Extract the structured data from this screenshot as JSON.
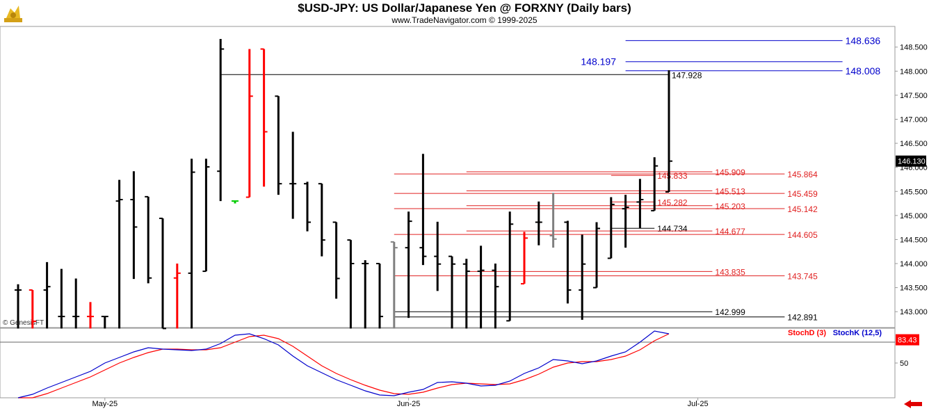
{
  "header": {
    "title": "$USD-JPY:  US Dollar/Japanese Yen @ FORXNY  (Daily bars)",
    "subtitle": "www.TradeNavigator.com © 1999-2025",
    "watermark": "© GenesisFT"
  },
  "colors": {
    "up_bar": "#000000",
    "down_bar": "#ff0000",
    "neutral_bar": "#808080",
    "green_tick": "#00cc00",
    "fib_line": "#e02020",
    "level_line": "#000000",
    "target_line": "#0000cc",
    "price_tag_bg": "#000000",
    "stoch_tag_bg": "#ff0000",
    "stoch_k": "#0000cc",
    "stoch_d": "#ff0000"
  },
  "chart_data": {
    "type": "bar",
    "subtype": "ohlc",
    "y_axis": {
      "ylim": [
        142.67,
        148.93
      ],
      "ticks": [
        "148.500",
        "148.000",
        "147.500",
        "147.000",
        "146.500",
        "146.000",
        "145.500",
        "145.000",
        "144.500",
        "144.000",
        "143.500",
        "143.000"
      ],
      "tick_values": [
        148.5,
        148.0,
        147.5,
        147.0,
        146.5,
        146.0,
        145.5,
        145.0,
        144.5,
        144.0,
        143.5,
        143.0
      ],
      "last_price": "146.130",
      "last_price_value": 146.13
    },
    "x_axis": {
      "labels": [
        "May-25",
        "Jun-25",
        "Jul-25"
      ],
      "label_slots": [
        6,
        27,
        47
      ],
      "slot_count": 56
    },
    "bars": [
      {
        "slot": 0,
        "o": 143.45,
        "h": 143.57,
        "l": 142.65,
        "c": 143.45,
        "color": "up"
      },
      {
        "slot": 1,
        "o": 143.45,
        "h": 143.45,
        "l": 142.65,
        "c": 142.8,
        "color": "down"
      },
      {
        "slot": 2,
        "o": 143.45,
        "h": 144.03,
        "l": 142.65,
        "c": 143.52,
        "color": "up"
      },
      {
        "slot": 3,
        "o": 142.9,
        "h": 143.89,
        "l": 142.65,
        "c": 142.9,
        "color": "up"
      },
      {
        "slot": 4,
        "o": 142.9,
        "h": 143.69,
        "l": 142.65,
        "c": 142.9,
        "color": "up"
      },
      {
        "slot": 5,
        "o": 142.9,
        "h": 143.2,
        "l": 142.65,
        "c": 142.9,
        "color": "down"
      },
      {
        "slot": 6,
        "o": 142.9,
        "h": 142.9,
        "l": 142.65,
        "c": 142.9,
        "color": "up"
      },
      {
        "slot": 7,
        "o": 145.3,
        "h": 145.74,
        "l": 142.65,
        "c": 145.33,
        "color": "up"
      },
      {
        "slot": 8,
        "o": 145.33,
        "h": 145.92,
        "l": 143.68,
        "c": 144.76,
        "color": "up"
      },
      {
        "slot": 9,
        "o": 145.39,
        "h": 145.39,
        "l": 143.59,
        "c": 143.7,
        "color": "up"
      },
      {
        "slot": 10,
        "o": 144.94,
        "h": 144.94,
        "l": 142.65,
        "c": 142.65,
        "color": "up"
      },
      {
        "slot": 11,
        "o": 143.7,
        "h": 144.0,
        "l": 142.65,
        "c": 143.8,
        "color": "down"
      },
      {
        "slot": 12,
        "o": 143.8,
        "h": 146.18,
        "l": 142.65,
        "c": 145.9,
        "color": "up"
      },
      {
        "slot": 13,
        "o": 143.84,
        "h": 146.18,
        "l": 143.84,
        "c": 146.01,
        "color": "up"
      },
      {
        "slot": 14,
        "o": 145.92,
        "h": 148.67,
        "l": 145.3,
        "c": 148.46,
        "color": "up"
      },
      {
        "slot": 15,
        "o": 145.3,
        "h": 145.3,
        "l": 145.25,
        "c": 145.3,
        "color": "green"
      },
      {
        "slot": 16,
        "o": 145.38,
        "h": 148.46,
        "l": 145.38,
        "c": 147.48,
        "color": "down"
      },
      {
        "slot": 17,
        "o": 148.46,
        "h": 148.46,
        "l": 145.6,
        "c": 146.74,
        "color": "down"
      },
      {
        "slot": 18,
        "o": 147.48,
        "h": 147.48,
        "l": 145.43,
        "c": 145.66,
        "color": "up"
      },
      {
        "slot": 19,
        "o": 145.66,
        "h": 146.74,
        "l": 144.93,
        "c": 145.66,
        "color": "up"
      },
      {
        "slot": 20,
        "o": 145.66,
        "h": 145.7,
        "l": 144.67,
        "c": 144.86,
        "color": "up"
      },
      {
        "slot": 21,
        "o": 145.66,
        "h": 145.66,
        "l": 144.15,
        "c": 144.49,
        "color": "up"
      },
      {
        "slot": 22,
        "o": 144.86,
        "h": 144.86,
        "l": 143.27,
        "c": 143.69,
        "color": "up"
      },
      {
        "slot": 23,
        "o": 144.49,
        "h": 144.49,
        "l": 142.65,
        "c": 144.0,
        "color": "up"
      },
      {
        "slot": 24,
        "o": 144.0,
        "h": 144.07,
        "l": 142.65,
        "c": 144.0,
        "color": "up"
      },
      {
        "slot": 25,
        "o": 144.0,
        "h": 144.0,
        "l": 142.65,
        "c": 142.9,
        "color": "up"
      },
      {
        "slot": 26,
        "o": 144.45,
        "h": 144.45,
        "l": 142.65,
        "c": 144.33,
        "color": "neutral"
      },
      {
        "slot": 27,
        "o": 144.33,
        "h": 145.08,
        "l": 142.87,
        "c": 144.88,
        "color": "up"
      },
      {
        "slot": 28,
        "o": 144.33,
        "h": 146.28,
        "l": 143.97,
        "c": 144.15,
        "color": "up"
      },
      {
        "slot": 29,
        "o": 144.15,
        "h": 144.87,
        "l": 143.43,
        "c": 143.99,
        "color": "up"
      },
      {
        "slot": 30,
        "o": 144.15,
        "h": 144.15,
        "l": 142.65,
        "c": 143.99,
        "color": "up"
      },
      {
        "slot": 31,
        "o": 143.99,
        "h": 144.1,
        "l": 142.65,
        "c": 143.84,
        "color": "up"
      },
      {
        "slot": 32,
        "o": 143.84,
        "h": 144.37,
        "l": 142.65,
        "c": 143.86,
        "color": "up"
      },
      {
        "slot": 33,
        "o": 143.86,
        "h": 144.0,
        "l": 142.65,
        "c": 143.52,
        "color": "up"
      },
      {
        "slot": 34,
        "o": 142.81,
        "h": 145.08,
        "l": 142.81,
        "c": 144.82,
        "color": "up"
      },
      {
        "slot": 35,
        "o": 143.58,
        "h": 144.66,
        "l": 143.58,
        "c": 144.53,
        "color": "down"
      },
      {
        "slot": 36,
        "o": 144.86,
        "h": 145.29,
        "l": 144.38,
        "c": 144.86,
        "color": "up"
      },
      {
        "slot": 37,
        "o": 144.58,
        "h": 145.47,
        "l": 144.33,
        "c": 144.51,
        "color": "neutral"
      },
      {
        "slot": 38,
        "o": 144.86,
        "h": 144.89,
        "l": 143.17,
        "c": 143.45,
        "color": "up"
      },
      {
        "slot": 39,
        "o": 143.45,
        "h": 144.6,
        "l": 142.83,
        "c": 143.99,
        "color": "up"
      },
      {
        "slot": 40,
        "o": 143.5,
        "h": 144.86,
        "l": 143.5,
        "c": 144.73,
        "color": "up"
      },
      {
        "slot": 41,
        "o": 144.11,
        "h": 145.38,
        "l": 144.11,
        "c": 145.23,
        "color": "up"
      },
      {
        "slot": 42,
        "o": 145.14,
        "h": 145.43,
        "l": 144.33,
        "c": 145.17,
        "color": "up"
      },
      {
        "slot": 43,
        "o": 145.28,
        "h": 145.76,
        "l": 144.73,
        "c": 145.33,
        "color": "up"
      },
      {
        "slot": 44,
        "o": 145.1,
        "h": 146.21,
        "l": 145.1,
        "c": 146.03,
        "color": "up"
      },
      {
        "slot": 45,
        "o": 145.49,
        "h": 148.02,
        "l": 145.49,
        "c": 146.13,
        "color": "up"
      }
    ],
    "price_levels": [
      {
        "label": "147.928",
        "value": 147.928,
        "kind": "level",
        "x_from_slot": 14,
        "x_to_slot": 45
      },
      {
        "label": "144.734",
        "value": 144.734,
        "kind": "level",
        "x_from_slot": 41,
        "x_to_slot": 44
      },
      {
        "label": "142.999",
        "value": 142.999,
        "kind": "level",
        "x_from_slot": 26,
        "x_to_slot": 48
      },
      {
        "label": "142.891",
        "value": 142.891,
        "kind": "level",
        "x_from_slot": 26,
        "x_to_slot": 53
      },
      {
        "label": "145.909",
        "value": 145.909,
        "kind": "fib",
        "x_from_slot": 31,
        "x_to_slot": 48
      },
      {
        "label": "145.864",
        "value": 145.864,
        "kind": "fib",
        "x_from_slot": 26,
        "x_to_slot": 53
      },
      {
        "label": "145.833",
        "value": 145.833,
        "kind": "fib",
        "x_from_slot": 41,
        "x_to_slot": 44
      },
      {
        "label": "145.513",
        "value": 145.513,
        "kind": "fib",
        "x_from_slot": 31,
        "x_to_slot": 48
      },
      {
        "label": "145.459",
        "value": 145.459,
        "kind": "fib",
        "x_from_slot": 26,
        "x_to_slot": 53
      },
      {
        "label": "145.282",
        "value": 145.282,
        "kind": "fib",
        "x_from_slot": 41,
        "x_to_slot": 44
      },
      {
        "label": "145.203",
        "value": 145.203,
        "kind": "fib",
        "x_from_slot": 31,
        "x_to_slot": 48
      },
      {
        "label": "145.142",
        "value": 145.142,
        "kind": "fib",
        "x_from_slot": 26,
        "x_to_slot": 53
      },
      {
        "label": "144.677",
        "value": 144.677,
        "kind": "fib",
        "x_from_slot": 31,
        "x_to_slot": 48
      },
      {
        "label": "144.605",
        "value": 144.605,
        "kind": "fib",
        "x_from_slot": 26,
        "x_to_slot": 53
      },
      {
        "label": "143.835",
        "value": 143.835,
        "kind": "fib",
        "x_from_slot": 31,
        "x_to_slot": 48
      },
      {
        "label": "143.745",
        "value": 143.745,
        "kind": "fib",
        "x_from_slot": 26,
        "x_to_slot": 53
      },
      {
        "label": "148.636",
        "value": 148.636,
        "kind": "target",
        "x_from_slot": 42,
        "x_to_slot": 57
      },
      {
        "label": "148.197",
        "value": 148.197,
        "kind": "target",
        "x_from_slot": 42,
        "x_to_slot": 57
      },
      {
        "label": "148.008",
        "value": 148.008,
        "kind": "target",
        "x_from_slot": 42,
        "x_to_slot": 57
      }
    ],
    "stochastic": {
      "legend_d": "StochD (3)",
      "legend_k": "StochK (12,5)",
      "last_value": "83.43",
      "last_value_num": 83.43,
      "ylim": [
        0,
        100
      ],
      "ticks": [
        "50"
      ],
      "tick_values": [
        50
      ],
      "reference_line": 80,
      "k_values": [
        0,
        5,
        14,
        22,
        30,
        38,
        50,
        58,
        66,
        72,
        70,
        69,
        68,
        70,
        78,
        90,
        92,
        85,
        76,
        60,
        46,
        36,
        26,
        18,
        10,
        4,
        3,
        8,
        12,
        22,
        23,
        21,
        17,
        18,
        24,
        35,
        43,
        55,
        53,
        49,
        53,
        60,
        66,
        80,
        96,
        92
      ],
      "d_values": [
        0,
        0,
        6,
        14,
        22,
        30,
        40,
        50,
        58,
        65,
        70,
        70,
        69,
        69,
        72,
        80,
        88,
        90,
        85,
        74,
        60,
        46,
        35,
        26,
        18,
        11,
        6,
        5,
        8,
        14,
        19,
        21,
        20,
        19,
        20,
        26,
        34,
        44,
        50,
        52,
        52,
        55,
        60,
        69,
        82,
        92
      ]
    }
  }
}
